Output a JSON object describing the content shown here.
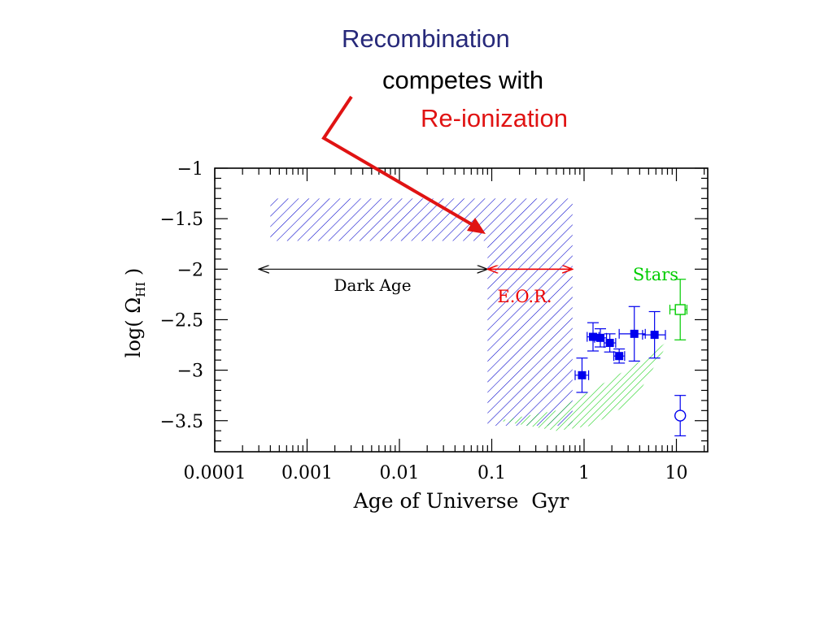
{
  "header": {
    "line1": "Recombination",
    "line2": "competes with",
    "line3": "Re-ionization",
    "color1": "#27297a",
    "color2": "#000000",
    "color3": "#e01313"
  },
  "chart_data": {
    "type": "scatter",
    "xlabel": "Age of Universe  Gyr",
    "ylabel": "log( Ω",
    "ylabel_sub": "HI",
    "ylabel_close": " )",
    "xscale": "log",
    "xlim": [
      0.0001,
      20
    ],
    "ylim": [
      -3.8,
      -1
    ],
    "x_ticks": [
      {
        "value": 0.0001,
        "label": "0.0001"
      },
      {
        "value": 0.001,
        "label": "0.001"
      },
      {
        "value": 0.01,
        "label": "0.01"
      },
      {
        "value": 0.1,
        "label": "0.1"
      },
      {
        "value": 1,
        "label": "1"
      },
      {
        "value": 10,
        "label": "10"
      }
    ],
    "y_ticks": [
      {
        "value": -1,
        "label": "−1"
      },
      {
        "value": -1.5,
        "label": "−1.5"
      },
      {
        "value": -2,
        "label": "−2"
      },
      {
        "value": -2.5,
        "label": "−2.5"
      },
      {
        "value": -3,
        "label": "−3"
      },
      {
        "value": -3.5,
        "label": "−3.5"
      }
    ],
    "series": [
      {
        "marker": "filled-square",
        "color": "#0000ee",
        "points": [
          {
            "x": 0.95,
            "y": -3.05,
            "yerr": 0.17,
            "xerr": [
              0.8,
              1.12
            ]
          },
          {
            "x": 1.25,
            "y": -2.67,
            "yerr": 0.14,
            "xerr": [
              1.08,
              1.45
            ]
          },
          {
            "x": 1.5,
            "y": -2.68,
            "yerr": 0.09,
            "xerr": [
              1.3,
              1.75
            ]
          },
          {
            "x": 1.9,
            "y": -2.73,
            "yerr": 0.09,
            "xerr": [
              1.65,
              2.2
            ]
          },
          {
            "x": 2.4,
            "y": -2.86,
            "yerr": 0.07,
            "xerr": [
              2.1,
              2.75
            ]
          },
          {
            "x": 3.5,
            "y": -2.64,
            "yerr": 0.27,
            "xerr": [
              2.4,
              4.6
            ]
          },
          {
            "x": 5.8,
            "y": -2.65,
            "yerr": 0.23,
            "xerr": [
              4.3,
              7.6
            ]
          }
        ]
      },
      {
        "marker": "open-square",
        "color": "#00cc00",
        "points": [
          {
            "x": 11,
            "y": -2.4,
            "yerr": 0.3,
            "xerr": [
              8.5,
              13
            ]
          }
        ]
      },
      {
        "marker": "open-circle",
        "color": "#0000ee",
        "points": [
          {
            "x": 11,
            "y": -3.45,
            "yerr": 0.2
          }
        ]
      }
    ],
    "regions": [
      {
        "name": "dark-age-band",
        "color": "#0000cc",
        "x": [
          0.0004,
          0.09
        ],
        "y": [
          -1.72,
          -1.3
        ]
      },
      {
        "name": "eor-band",
        "color": "#0000cc",
        "x": [
          0.09,
          0.75
        ],
        "y": [
          -3.55,
          -1.3
        ]
      },
      {
        "name": "stars-band",
        "color": "#00cc00",
        "curve": [
          [
            0.12,
            -3.5
          ],
          [
            0.5,
            -3.4
          ],
          [
            1.2,
            -3.2
          ],
          [
            3.5,
            -2.95
          ],
          [
            8.5,
            -2.7
          ],
          [
            8.5,
            -2.7
          ],
          [
            3.5,
            -3.3
          ],
          [
            1.2,
            -3.55
          ],
          [
            0.5,
            -3.6
          ],
          [
            0.12,
            -3.5
          ]
        ]
      }
    ],
    "annotations": [
      {
        "text": "Dark Age",
        "color": "#000000"
      },
      {
        "text": "E.O.R.",
        "color": "#ee0000"
      },
      {
        "text": "Stars",
        "color": "#00cc00"
      }
    ],
    "arrows": [
      {
        "name": "dark-age-arrow",
        "x": [
          0.0003,
          0.09
        ],
        "y": -2,
        "color": "#000000"
      },
      {
        "name": "eor-arrow",
        "x": [
          0.09,
          0.75
        ],
        "y": -2,
        "color": "#ee0000"
      }
    ]
  }
}
